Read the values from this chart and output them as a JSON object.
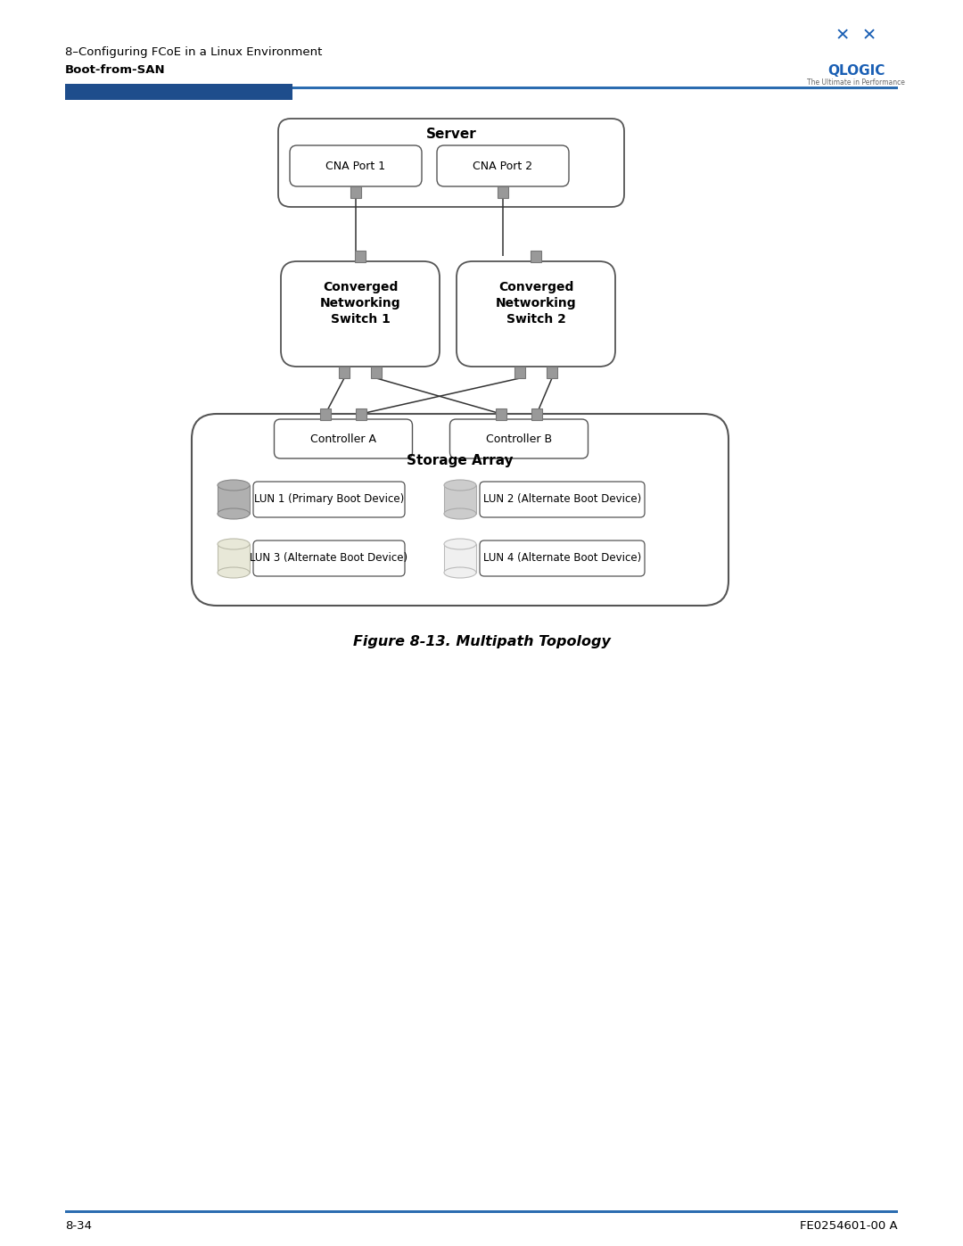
{
  "bg_color": "#ffffff",
  "header_line1": "8–Configuring FCoE in a Linux Environment",
  "header_line2": "Boot-from-SAN",
  "footer_left": "8-34",
  "footer_right": "FE0254601-00 A",
  "figure_caption": "Figure 8-13. Multipath Topology",
  "server_label": "Server",
  "cna_port1": "CNA Port 1",
  "cna_port2": "CNA Port 2",
  "switch1_line1": "Converged",
  "switch1_line2": "Networking",
  "switch1_line3": "Switch 1",
  "switch2_line1": "Converged",
  "switch2_line2": "Networking",
  "switch2_line3": "Switch 2",
  "controller_a": "Controller A",
  "controller_b": "Controller B",
  "storage_array_label": "Storage Array",
  "lun1": "LUN 1 (Primary Boot Device)",
  "lun2": "LUN 2 (Alternate Boot Device)",
  "lun3": "LUN 3 (Alternate Boot Device)",
  "lun4": "LUN 4 (Alternate Boot Device)",
  "dark_blue": "#1e4d8c",
  "mid_blue": "#2b5ca8",
  "box_stroke": "#555555",
  "line_color": "#555555",
  "red_line": "#8b0000",
  "nub_fc": "#999999",
  "nub_ec": "#777777"
}
